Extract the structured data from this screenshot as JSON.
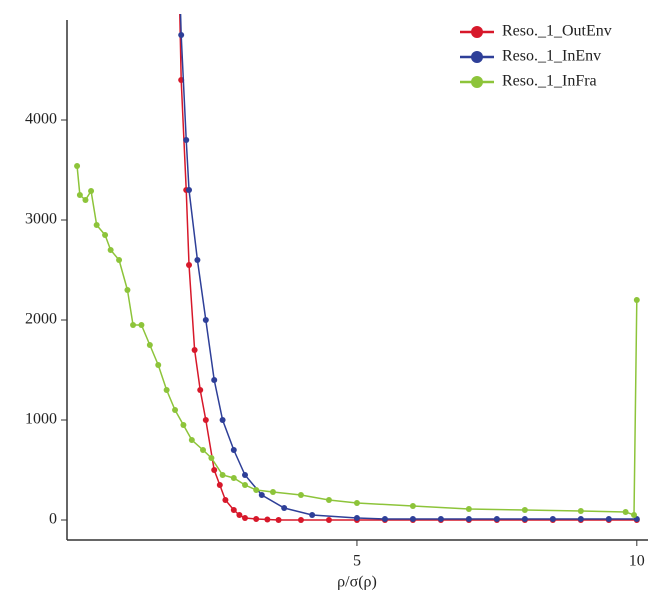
{
  "chart_data": {
    "type": "line",
    "x_label": "ρ/σ(ρ)",
    "xlim": [
      -0.18,
      10.2
    ],
    "ylim": [
      -200,
      5000
    ],
    "xticks": [
      5,
      10
    ],
    "yticks": [
      0,
      1000,
      2000,
      3000,
      4000
    ],
    "legend": "top-right",
    "series": [
      {
        "name": "Reso._1_OutEnv",
        "color": "#d7182a",
        "x": [
          1.8,
          1.86,
          1.95,
          2.0,
          2.1,
          2.2,
          2.3,
          2.45,
          2.55,
          2.65,
          2.8,
          2.9,
          3.0,
          3.2,
          3.4,
          3.6,
          4.0,
          4.5,
          5.0,
          5.5,
          6.0,
          6.5,
          7.0,
          7.5,
          8.0,
          8.5,
          9.0,
          9.5,
          10.0
        ],
        "values": [
          6000,
          4400,
          3300,
          2550,
          1700,
          1300,
          1000,
          500,
          350,
          200,
          100,
          50,
          20,
          10,
          5,
          0,
          0,
          0,
          0,
          0,
          0,
          0,
          0,
          0,
          0,
          0,
          0,
          0,
          0
        ]
      },
      {
        "name": "Reso._1_InEnv",
        "color": "#2e3f98",
        "x": [
          1.8,
          1.86,
          1.95,
          2.0,
          2.15,
          2.3,
          2.45,
          2.6,
          2.8,
          3.0,
          3.3,
          3.7,
          4.2,
          5.0,
          5.5,
          6.0,
          6.5,
          7.0,
          7.5,
          8.0,
          8.5,
          9.0,
          9.5,
          10.0
        ],
        "values": [
          6000,
          4850,
          3800,
          3300,
          2600,
          2000,
          1400,
          1000,
          700,
          450,
          250,
          120,
          50,
          20,
          10,
          10,
          10,
          10,
          10,
          10,
          10,
          10,
          10,
          10
        ]
      },
      {
        "name": "Reso._1_InFra",
        "color": "#8dc43a",
        "x": [
          0,
          0.05,
          0.15,
          0.25,
          0.35,
          0.5,
          0.6,
          0.75,
          0.9,
          1.0,
          1.15,
          1.3,
          1.45,
          1.6,
          1.75,
          1.9,
          2.05,
          2.25,
          2.4,
          2.6,
          2.8,
          3.0,
          3.2,
          3.5,
          4.0,
          4.5,
          5.0,
          6.0,
          7.0,
          8.0,
          9.0,
          9.8,
          9.95,
          10.0
        ],
        "values": [
          3540,
          3250,
          3200,
          3290,
          2950,
          2850,
          2700,
          2600,
          2300,
          1950,
          1950,
          1750,
          1550,
          1300,
          1100,
          950,
          800,
          700,
          620,
          450,
          420,
          350,
          300,
          280,
          250,
          200,
          170,
          140,
          110,
          100,
          90,
          80,
          50,
          2200
        ]
      }
    ]
  }
}
